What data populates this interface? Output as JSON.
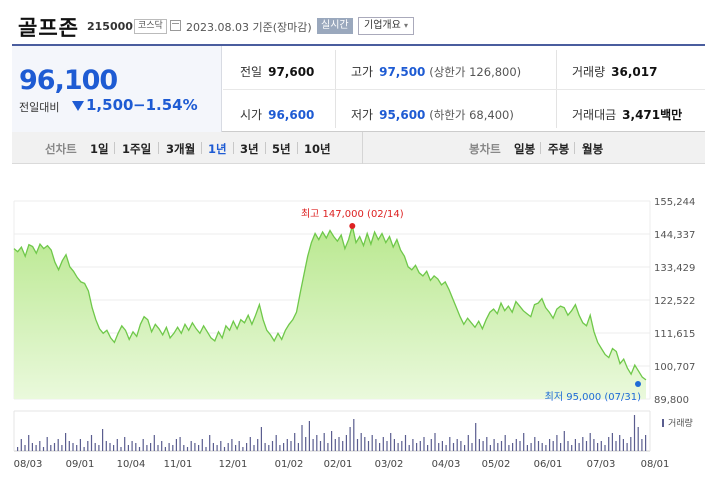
{
  "header": {
    "name": "골프존",
    "code": "215000",
    "market": "코스닥",
    "date_text": "2023.08.03 기준(장마감)",
    "realtime_label": "실시간",
    "overview_label": "기업개요"
  },
  "quote": {
    "price": "96,100",
    "change_label": "전일대비",
    "change_value": "1,500",
    "change_pct": "−1.54%",
    "prev_close_label": "전일",
    "prev_close": "97,600",
    "high_label": "고가",
    "high": "97,500",
    "upper_limit": "(상한가 126,800)",
    "volume_label": "거래량",
    "volume": "36,017",
    "open_label": "시가",
    "open": "96,600",
    "low_label": "저가",
    "low": "95,600",
    "lower_limit": "(하한가 68,400)",
    "amount_label": "거래대금",
    "amount": "3,471",
    "amount_unit": "백만"
  },
  "toolbar": {
    "line_chart_label": "선차트",
    "periods": [
      "1일",
      "1주일",
      "3개월",
      "1년",
      "3년",
      "5년",
      "10년"
    ],
    "active_period": "1년",
    "candle_label": "봉차트",
    "candles": [
      "일봉",
      "주봉",
      "월봉"
    ]
  },
  "colors": {
    "line": "#6fc84a",
    "fill_top": "#b9e88f",
    "fill_bottom": "#eaf9dc",
    "volume": "#5a5d8f",
    "max_marker": "#dd2222",
    "min_marker": "#1e6bd6",
    "accent_blue": "#1e5bd3"
  },
  "chart_data": {
    "type": "area",
    "y_ticks": [
      "155,244",
      "144,337",
      "133,429",
      "122,522",
      "111,615",
      "100,707",
      "89,800"
    ],
    "ylim": [
      89800,
      155244
    ],
    "x_ticks": [
      "08/03",
      "09/01",
      "10/04",
      "11/01",
      "12/01",
      "01/02",
      "02/01",
      "03/02",
      "04/03",
      "05/02",
      "06/01",
      "07/03",
      "08/01"
    ],
    "max_annotation": "최고 147,000 (02/14)",
    "min_annotation": "최저 95,000 (07/31)",
    "volume_label": "거래량",
    "price_series": [
      139500,
      138500,
      140000,
      137000,
      140800,
      140200,
      138000,
      141000,
      139500,
      140500,
      139000,
      135000,
      132500,
      135500,
      137500,
      133500,
      132000,
      130000,
      128500,
      128000,
      125500,
      120000,
      116000,
      113000,
      111500,
      112500,
      110000,
      108500,
      111500,
      114000,
      112500,
      109500,
      112000,
      110500,
      114500,
      117000,
      116000,
      112000,
      114500,
      113000,
      111000,
      113500,
      110000,
      111500,
      113500,
      111500,
      114500,
      112500,
      115000,
      113000,
      111500,
      114000,
      112000,
      110000,
      109000,
      112000,
      110000,
      114000,
      112500,
      115500,
      113000,
      116000,
      115000,
      117500,
      114500,
      117500,
      121000,
      116000,
      112500,
      111000,
      109000,
      111500,
      109500,
      112500,
      114500,
      116000,
      118500,
      125000,
      131000,
      137000,
      141500,
      144500,
      142500,
      145000,
      143000,
      145500,
      143500,
      142000,
      144000,
      139500,
      142500,
      147000,
      141500,
      143500,
      140500,
      144500,
      141000,
      145000,
      142500,
      144500,
      141500,
      143500,
      140000,
      142500,
      139000,
      137000,
      133500,
      132500,
      134000,
      131500,
      130500,
      132000,
      129000,
      130500,
      129500,
      127500,
      128500,
      126000,
      123000,
      120000,
      117000,
      114500,
      116500,
      115000,
      113500,
      115500,
      113000,
      116000,
      118500,
      119500,
      118000,
      121500,
      119000,
      120500,
      118500,
      122000,
      120500,
      119000,
      118000,
      117000,
      121000,
      121500,
      123000,
      120000,
      118500,
      116500,
      119500,
      120500,
      120000,
      117500,
      119000,
      121000,
      117500,
      115000,
      114000,
      117500,
      112000,
      108500,
      106500,
      104500,
      103500,
      106500,
      105500,
      101500,
      103000,
      100000,
      98000,
      101000,
      99000,
      97000,
      96100
    ],
    "volume_series": [
      2,
      6,
      3,
      8,
      4,
      3,
      5,
      2,
      7,
      3,
      4,
      6,
      3,
      9,
      5,
      4,
      3,
      6,
      2,
      5,
      8,
      4,
      3,
      11,
      5,
      4,
      3,
      6,
      2,
      7,
      3,
      5,
      4,
      2,
      6,
      3,
      4,
      8,
      3,
      5,
      2,
      4,
      3,
      6,
      7,
      3,
      2,
      5,
      4,
      3,
      6,
      2,
      8,
      4,
      3,
      5,
      2,
      4,
      6,
      3,
      5,
      2,
      4,
      7,
      3,
      6,
      12,
      4,
      3,
      5,
      8,
      3,
      4,
      6,
      5,
      9,
      4,
      13,
      7,
      15,
      6,
      8,
      5,
      9,
      4,
      10,
      6,
      7,
      5,
      8,
      12,
      16,
      6,
      9,
      7,
      5,
      8,
      6,
      4,
      7,
      5,
      9,
      6,
      4,
      5,
      8,
      3,
      6,
      4,
      5,
      7,
      3,
      6,
      9,
      4,
      5,
      3,
      7,
      4,
      6,
      5,
      3,
      8,
      4,
      14,
      6,
      5,
      7,
      3,
      6,
      4,
      5,
      8,
      3,
      4,
      6,
      5,
      9,
      3,
      4,
      7,
      5,
      4,
      3,
      6,
      5,
      8,
      4,
      10,
      5,
      3,
      6,
      4,
      7,
      5,
      9,
      6,
      4,
      5,
      3,
      7,
      9,
      5,
      8,
      6,
      4,
      7,
      18,
      12,
      6,
      8
    ]
  }
}
